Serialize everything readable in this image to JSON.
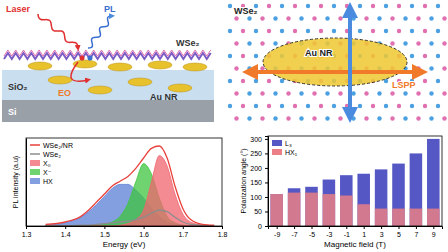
{
  "diagram": {
    "side_view": {
      "labels": [
        "Laser",
        "PL",
        "WSe₂",
        "SiO₂",
        "Si",
        "Au NR",
        "EO"
      ]
    },
    "top_view": {
      "labels": [
        "WSe₂",
        "Au NR",
        "LSPP"
      ]
    }
  },
  "chart_data": [
    {
      "type": "line",
      "x_label": "Energy (eV)",
      "y_label": "PL intensity (a.u)",
      "x": [
        1.35,
        1.4,
        1.44,
        1.46,
        1.48,
        1.5,
        1.52,
        1.54,
        1.56,
        1.58,
        1.6,
        1.62,
        1.64,
        1.66,
        1.68,
        1.7,
        1.72,
        1.75,
        1.78
      ],
      "xlim": [
        1.3,
        1.8
      ],
      "xticks": [
        1.3,
        1.4,
        1.5,
        1.6,
        1.7,
        1.8
      ],
      "ylim": [
        0,
        1.1
      ],
      "tick_labels": "x",
      "legend": "upper left",
      "series": [
        {
          "name": "WSe₂/NR",
          "color": "#e8413c",
          "type": "line",
          "values": [
            0.02,
            0.05,
            0.12,
            0.2,
            0.3,
            0.4,
            0.5,
            0.56,
            0.62,
            0.72,
            0.85,
            0.97,
            1.0,
            0.85,
            0.5,
            0.22,
            0.08,
            0.02,
            0.01
          ]
        },
        {
          "name": "WSe₂",
          "color": "#8c8c8c",
          "type": "line",
          "values": [
            0,
            0,
            0.01,
            0.01,
            0.02,
            0.03,
            0.04,
            0.05,
            0.06,
            0.08,
            0.11,
            0.16,
            0.2,
            0.18,
            0.11,
            0.05,
            0.02,
            0.01,
            0
          ]
        },
        {
          "name": "X₀",
          "color": "#f0646e",
          "type": "area",
          "values": [
            0,
            0,
            0,
            0,
            0,
            0,
            0,
            0.01,
            0.03,
            0.08,
            0.2,
            0.55,
            0.88,
            0.75,
            0.4,
            0.15,
            0.05,
            0.01,
            0
          ]
        },
        {
          "name": "X⁻",
          "color": "#3fc43f",
          "type": "area",
          "values": [
            0,
            0,
            0,
            0,
            0.01,
            0.02,
            0.05,
            0.12,
            0.28,
            0.55,
            0.78,
            0.65,
            0.35,
            0.12,
            0.04,
            0.01,
            0,
            0,
            0
          ]
        },
        {
          "name": "HX",
          "color": "#5b7fd6",
          "type": "area",
          "values": [
            0.01,
            0.04,
            0.11,
            0.18,
            0.27,
            0.37,
            0.47,
            0.52,
            0.52,
            0.45,
            0.35,
            0.22,
            0.12,
            0.05,
            0.02,
            0.01,
            0,
            0,
            0
          ]
        }
      ]
    },
    {
      "type": "bar",
      "x_label": "Magnetic field (T)",
      "y_label": "Polarization angle (°)",
      "x": [
        -9,
        -7,
        -5,
        -3,
        -1,
        1,
        3,
        5,
        7,
        9
      ],
      "xlim": [
        -10,
        10
      ],
      "xticks": [
        -9,
        -7,
        -5,
        -3,
        -1,
        1,
        3,
        5,
        7,
        9
      ],
      "ylim": [
        0,
        310
      ],
      "yticks": [
        0,
        50,
        100,
        150,
        200,
        250,
        300
      ],
      "legend": "upper left",
      "stacked": false,
      "series": [
        {
          "name": "L₃",
          "color": "#5457c4",
          "values": [
            110,
            130,
            135,
            160,
            175,
            180,
            195,
            215,
            250,
            300
          ]
        },
        {
          "name": "HX₁",
          "color": "#ea7f86",
          "values": [
            110,
            115,
            115,
            110,
            105,
            75,
            60,
            60,
            60,
            60
          ]
        }
      ]
    }
  ]
}
